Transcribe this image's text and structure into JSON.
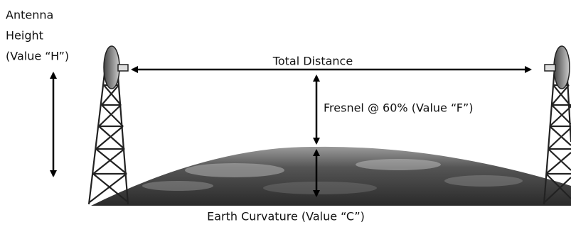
{
  "labels": {
    "antenna_height": [
      "Antenna",
      "Height",
      "(Value “H”)"
    ],
    "total_distance": "Total Distance",
    "fresnel": "Fresnel @ 60% (Value “F”)",
    "earth_curvature": "Earth Curvature (Value “C”)"
  }
}
